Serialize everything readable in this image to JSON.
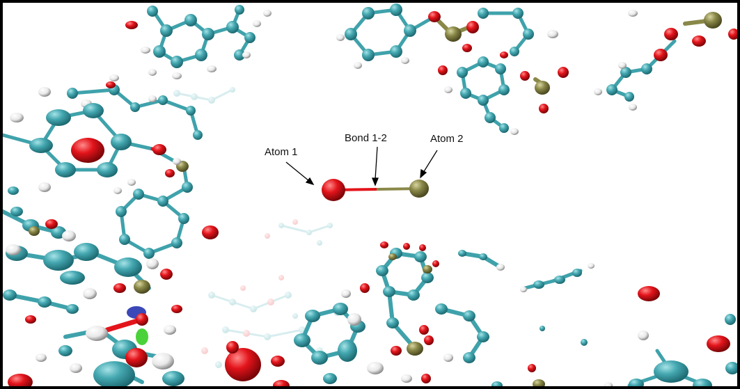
{
  "figure": {
    "labels": {
      "atom1": "Atom 1",
      "bond": "Bond 1-2",
      "atom2": "Atom 2"
    },
    "colors": {
      "carbon": "#3fa2ab",
      "oxygen": "#e3141b",
      "phosphorus": "#8a8848",
      "hydrogen": "#f2f2f2",
      "frame": "#000000"
    }
  }
}
